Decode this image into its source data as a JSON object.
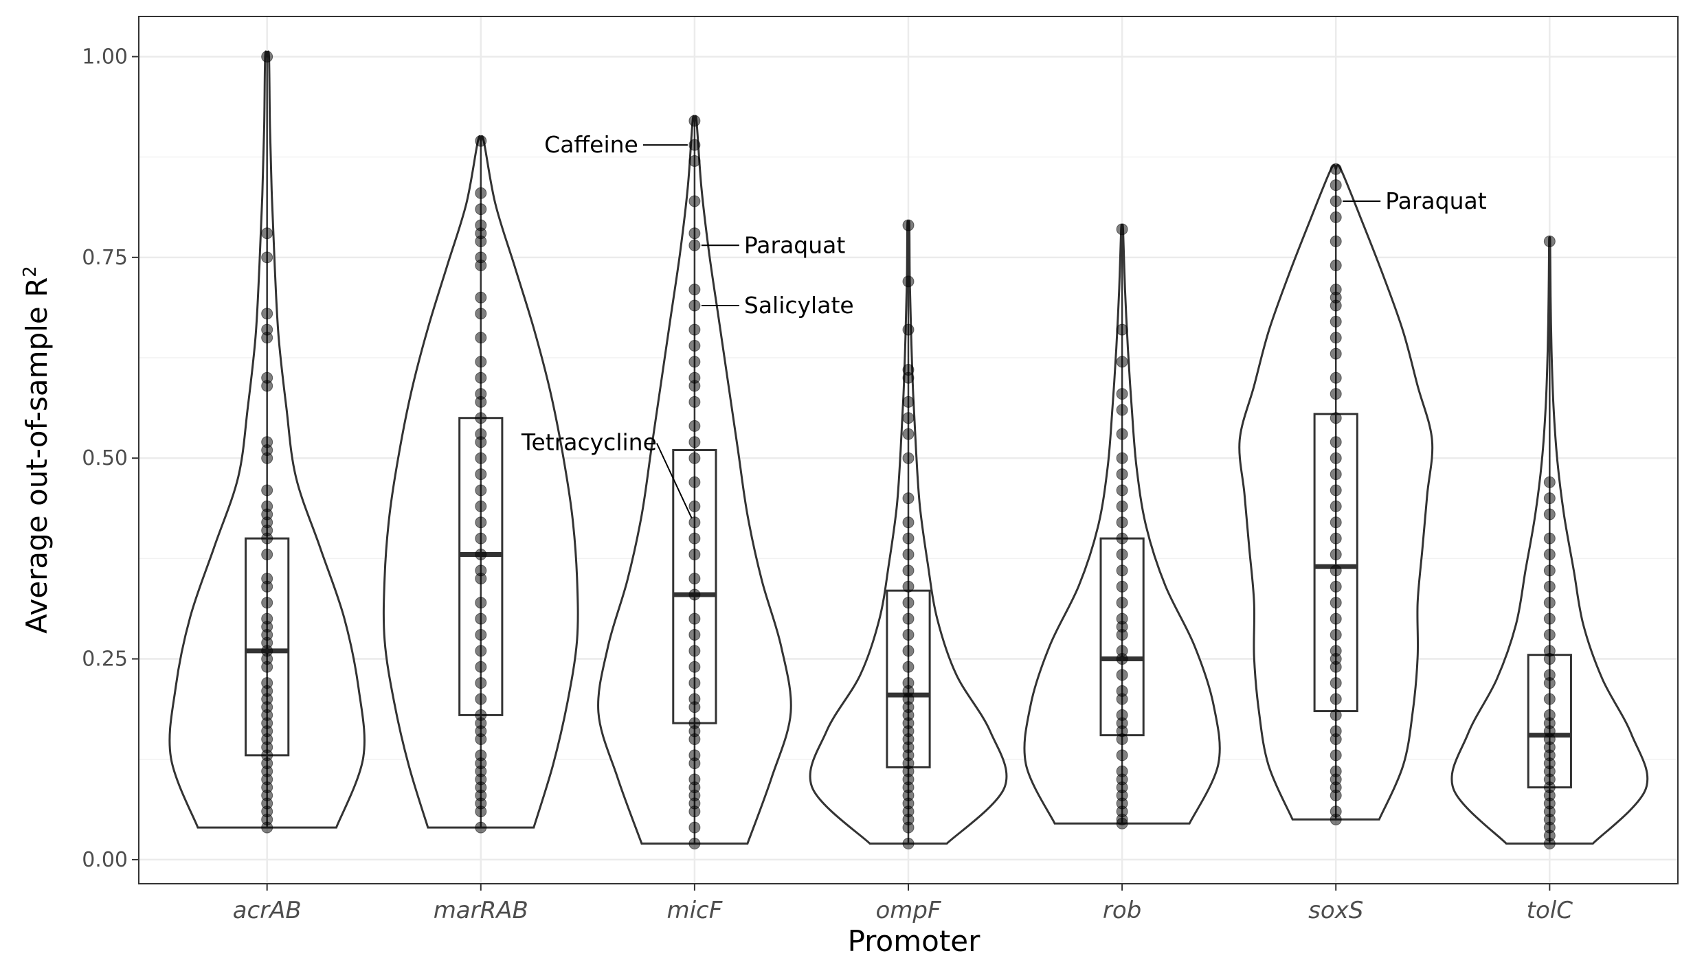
{
  "chart_data": {
    "type": "violin",
    "xlabel": "Promoter",
    "ylabel": "Average out-of-sample R",
    "ylabel_superscript": "2",
    "ylim": [
      -0.03,
      1.05
    ],
    "yticks": [
      "0.00",
      "0.25",
      "0.50",
      "0.75",
      "1.00"
    ],
    "ytick_values": [
      0,
      0.25,
      0.5,
      0.75,
      1.0
    ],
    "grid": true,
    "categories": [
      "acrAB",
      "marRAB",
      "micF",
      "ompF",
      "rob",
      "soxS",
      "tolC"
    ],
    "groups": [
      {
        "name": "acrAB",
        "box": {
          "q1": 0.13,
          "median": 0.26,
          "q3": 0.4
        },
        "violin": {
          "min": 0.04,
          "max": 1.0,
          "profile": [
            0.72,
            1.0,
            0.95,
            0.8,
            0.55,
            0.3,
            0.2,
            0.12,
            0.08,
            0.05,
            0.03,
            0.02
          ]
        },
        "points": [
          0.04,
          0.05,
          0.06,
          0.07,
          0.08,
          0.09,
          0.1,
          0.11,
          0.12,
          0.13,
          0.14,
          0.15,
          0.16,
          0.17,
          0.18,
          0.19,
          0.2,
          0.21,
          0.22,
          0.24,
          0.25,
          0.26,
          0.27,
          0.28,
          0.29,
          0.3,
          0.32,
          0.34,
          0.35,
          0.38,
          0.4,
          0.41,
          0.42,
          0.43,
          0.44,
          0.46,
          0.5,
          0.51,
          0.52,
          0.59,
          0.6,
          0.65,
          0.66,
          0.68,
          0.75,
          0.78,
          1.0
        ]
      },
      {
        "name": "marRAB",
        "box": {
          "q1": 0.18,
          "median": 0.38,
          "q3": 0.55
        },
        "violin": {
          "min": 0.04,
          "max": 0.895,
          "profile": [
            0.55,
            0.75,
            0.9,
            1.0,
            1.0,
            0.95,
            0.85,
            0.72,
            0.55,
            0.35,
            0.15,
            0.03
          ]
        },
        "points": [
          0.04,
          0.06,
          0.07,
          0.08,
          0.09,
          0.1,
          0.11,
          0.12,
          0.13,
          0.15,
          0.16,
          0.17,
          0.18,
          0.2,
          0.22,
          0.24,
          0.26,
          0.28,
          0.3,
          0.32,
          0.35,
          0.36,
          0.38,
          0.4,
          0.42,
          0.44,
          0.46,
          0.48,
          0.5,
          0.52,
          0.53,
          0.55,
          0.57,
          0.58,
          0.6,
          0.62,
          0.65,
          0.68,
          0.7,
          0.74,
          0.75,
          0.77,
          0.78,
          0.79,
          0.81,
          0.83,
          0.895
        ]
      },
      {
        "name": "micF",
        "box": {
          "q1": 0.17,
          "median": 0.33,
          "q3": 0.51
        },
        "violin": {
          "min": 0.02,
          "max": 0.92,
          "profile": [
            0.55,
            0.8,
            1.0,
            0.9,
            0.7,
            0.55,
            0.45,
            0.35,
            0.25,
            0.15,
            0.07,
            0.02
          ]
        },
        "points": [
          0.02,
          0.04,
          0.06,
          0.07,
          0.08,
          0.09,
          0.1,
          0.12,
          0.13,
          0.15,
          0.16,
          0.17,
          0.19,
          0.2,
          0.22,
          0.24,
          0.26,
          0.28,
          0.3,
          0.33,
          0.35,
          0.38,
          0.4,
          0.42,
          0.44,
          0.47,
          0.5,
          0.52,
          0.54,
          0.57,
          0.59,
          0.6,
          0.62,
          0.64,
          0.66,
          0.69,
          0.71,
          0.765,
          0.78,
          0.82,
          0.87,
          0.89,
          0.92
        ]
      },
      {
        "name": "ompF",
        "box": {
          "q1": 0.115,
          "median": 0.205,
          "q3": 0.335
        },
        "violin": {
          "min": 0.02,
          "max": 0.79,
          "profile": [
            0.4,
            1.0,
            0.85,
            0.5,
            0.3,
            0.2,
            0.12,
            0.08,
            0.05,
            0.03,
            0.015,
            0.01
          ]
        },
        "points": [
          0.02,
          0.04,
          0.05,
          0.06,
          0.07,
          0.08,
          0.09,
          0.1,
          0.11,
          0.12,
          0.13,
          0.14,
          0.15,
          0.16,
          0.17,
          0.18,
          0.19,
          0.2,
          0.21,
          0.22,
          0.24,
          0.26,
          0.28,
          0.3,
          0.32,
          0.34,
          0.36,
          0.38,
          0.4,
          0.42,
          0.45,
          0.5,
          0.53,
          0.55,
          0.57,
          0.6,
          0.61,
          0.66,
          0.72,
          0.79
        ]
      },
      {
        "name": "rob",
        "box": {
          "q1": 0.155,
          "median": 0.25,
          "q3": 0.4
        },
        "violin": {
          "min": 0.045,
          "max": 0.785,
          "profile": [
            0.7,
            1.0,
            0.95,
            0.75,
            0.45,
            0.25,
            0.15,
            0.1,
            0.06,
            0.03,
            0.01
          ]
        },
        "points": [
          0.045,
          0.05,
          0.06,
          0.07,
          0.08,
          0.09,
          0.1,
          0.11,
          0.13,
          0.15,
          0.16,
          0.17,
          0.18,
          0.2,
          0.21,
          0.23,
          0.25,
          0.26,
          0.28,
          0.29,
          0.3,
          0.32,
          0.34,
          0.36,
          0.38,
          0.4,
          0.42,
          0.44,
          0.46,
          0.48,
          0.5,
          0.53,
          0.56,
          0.58,
          0.62,
          0.66,
          0.785
        ]
      },
      {
        "name": "soxS",
        "box": {
          "q1": 0.185,
          "median": 0.365,
          "q3": 0.555
        },
        "violin": {
          "min": 0.05,
          "max": 0.86,
          "profile": [
            0.45,
            0.7,
            0.8,
            0.85,
            0.85,
            0.9,
            0.95,
            1.0,
            0.85,
            0.7,
            0.5,
            0.28,
            0.05
          ]
        },
        "points": [
          0.05,
          0.06,
          0.08,
          0.09,
          0.1,
          0.11,
          0.13,
          0.15,
          0.16,
          0.18,
          0.2,
          0.22,
          0.24,
          0.25,
          0.26,
          0.28,
          0.3,
          0.32,
          0.34,
          0.36,
          0.38,
          0.4,
          0.42,
          0.44,
          0.46,
          0.48,
          0.5,
          0.52,
          0.55,
          0.58,
          0.6,
          0.63,
          0.65,
          0.67,
          0.69,
          0.7,
          0.71,
          0.74,
          0.77,
          0.8,
          0.82,
          0.84,
          0.86
        ]
      },
      {
        "name": "tolC",
        "box": {
          "q1": 0.09,
          "median": 0.155,
          "q3": 0.255
        },
        "violin": {
          "min": 0.02,
          "max": 0.77,
          "profile": [
            0.45,
            1.0,
            0.85,
            0.55,
            0.35,
            0.25,
            0.15,
            0.08,
            0.04,
            0.02,
            0.01,
            0.005
          ]
        },
        "points": [
          0.02,
          0.03,
          0.04,
          0.05,
          0.06,
          0.07,
          0.08,
          0.09,
          0.1,
          0.11,
          0.12,
          0.13,
          0.14,
          0.15,
          0.16,
          0.17,
          0.18,
          0.2,
          0.22,
          0.23,
          0.25,
          0.26,
          0.28,
          0.3,
          0.32,
          0.34,
          0.36,
          0.38,
          0.4,
          0.43,
          0.45,
          0.47,
          0.77
        ]
      }
    ],
    "annotations": [
      {
        "text": "Caffeine",
        "group": "micF",
        "y": 0.89,
        "side": "left"
      },
      {
        "text": "Paraquat",
        "group": "micF",
        "y": 0.765,
        "side": "right"
      },
      {
        "text": "Salicylate",
        "group": "micF",
        "y": 0.69,
        "side": "right"
      },
      {
        "text": "Tetracycline",
        "group": "micF",
        "y": 0.425,
        "side": "left"
      },
      {
        "text": "Paraquat",
        "group": "soxS",
        "y": 0.82,
        "side": "right"
      }
    ]
  }
}
